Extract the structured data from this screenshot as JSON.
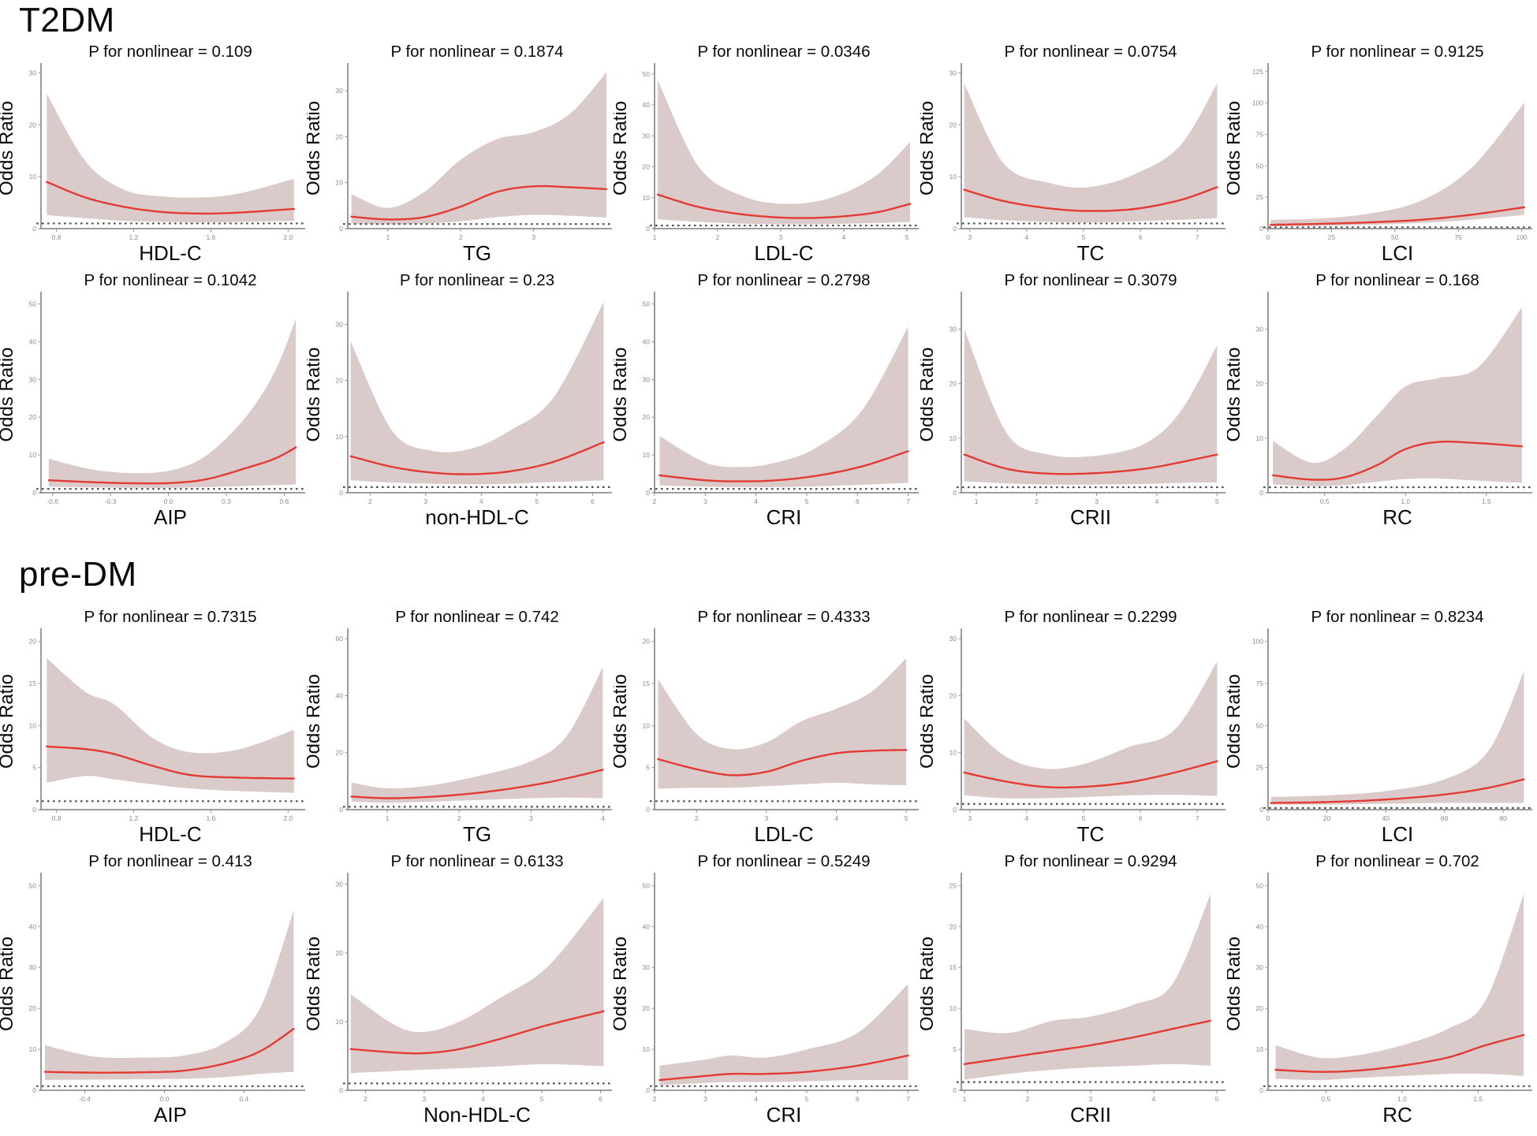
{
  "figure": {
    "sections": [
      {
        "id": "t2dm",
        "label": "T2DM"
      },
      {
        "id": "predm",
        "label": "pre-DM"
      }
    ],
    "ylabel": "Odds Ratio",
    "title_prefix": "P for nonlinear ="
  },
  "styles": {
    "line_color": "#e23b33",
    "band_color": "#dbcaca",
    "ref_line_color": "#4f4f4f",
    "axis_color": "#8f8f8f",
    "tick_label_color": "#8a8a8a",
    "text_color": "#0a0a0a",
    "background": "#ffffff"
  },
  "chart_data": [
    {
      "type": "line",
      "section": "T2DM",
      "row": 0,
      "title": "P for nonlinear =  0.109",
      "xlabel": "HDL-C",
      "ylabel": "Odds Ratio",
      "xticks": [
        "0.8",
        "1.2",
        "1.6",
        "2.0"
      ],
      "yticks": [
        0,
        10,
        20,
        30
      ],
      "xlim": [
        0.72,
        2.06
      ],
      "ylim": [
        0,
        31
      ],
      "ref_line_y": 1,
      "x": [
        0.75,
        0.95,
        1.15,
        1.35,
        1.55,
        1.75,
        2.03
      ],
      "y": [
        9,
        6,
        4.2,
        3.2,
        2.9,
        3.1,
        3.8
      ],
      "upper": [
        26,
        13,
        7.5,
        6.2,
        6.0,
        6.8,
        9.6
      ],
      "lower": [
        2.6,
        2.0,
        1.5,
        1.3,
        1.2,
        1.3,
        1.5
      ]
    },
    {
      "type": "line",
      "section": "T2DM",
      "row": 0,
      "title": "P for nonlinear =  0.1874",
      "xlabel": "TG",
      "ylabel": "Odds Ratio",
      "xticks": [
        "1",
        "2",
        "3"
      ],
      "yticks": [
        0,
        10,
        20,
        30
      ],
      "xlim": [
        0.45,
        4.0
      ],
      "ylim": [
        0,
        35
      ],
      "ref_line_y": 1,
      "x": [
        0.5,
        1.0,
        1.5,
        2.0,
        2.5,
        3.0,
        3.5,
        4.0
      ],
      "y": [
        2.6,
        2.0,
        2.5,
        4.8,
        8.0,
        9.2,
        9.0,
        8.6
      ],
      "upper": [
        7.5,
        4.5,
        8,
        15,
        19.5,
        21,
        25,
        34
      ],
      "lower": [
        1.1,
        0.9,
        1.1,
        1.6,
        2.5,
        3.0,
        2.8,
        2.4
      ]
    },
    {
      "type": "line",
      "section": "T2DM",
      "row": 0,
      "title": "P for nonlinear =  0.0346",
      "xlabel": "LDL-C",
      "ylabel": "Odds Ratio",
      "xticks": [
        "1",
        "2",
        "3",
        "4",
        "5"
      ],
      "yticks": [
        0,
        10,
        20,
        30,
        40,
        50
      ],
      "xlim": [
        1.0,
        5.1
      ],
      "ylim": [
        0,
        52
      ],
      "ref_line_y": 1,
      "x": [
        1.05,
        1.7,
        2.4,
        3.1,
        3.8,
        4.5,
        5.05
      ],
      "y": [
        11,
        7,
        4.6,
        3.5,
        3.7,
        5.2,
        8
      ],
      "upper": [
        48,
        20,
        10.5,
        8,
        10,
        17,
        28
      ],
      "lower": [
        3,
        2.2,
        1.6,
        1.4,
        1.5,
        1.8,
        2.2
      ]
    },
    {
      "type": "line",
      "section": "T2DM",
      "row": 0,
      "title": "P for nonlinear =  0.0754",
      "xlabel": "TC",
      "ylabel": "Odds Ratio",
      "xticks": [
        "3",
        "4",
        "5",
        "6",
        "7"
      ],
      "yticks": [
        0,
        10,
        20,
        30
      ],
      "xlim": [
        2.85,
        7.4
      ],
      "ylim": [
        0,
        31
      ],
      "ref_line_y": 1,
      "x": [
        2.9,
        3.6,
        4.4,
        5.1,
        5.9,
        6.7,
        7.35
      ],
      "y": [
        7.5,
        5.3,
        3.9,
        3.4,
        3.8,
        5.5,
        8
      ],
      "upper": [
        28,
        12.5,
        8.8,
        8,
        10.5,
        16,
        28
      ],
      "lower": [
        2.2,
        1.6,
        1.3,
        1.2,
        1.4,
        1.7,
        2.0
      ]
    },
    {
      "type": "line",
      "section": "T2DM",
      "row": 0,
      "title": "P for nonlinear =  0.9125",
      "xlabel": "LCI",
      "ylabel": "Odds Ratio",
      "xticks": [
        "0",
        "25",
        "50",
        "75",
        "100"
      ],
      "yticks": [
        0,
        25,
        50,
        75,
        100,
        125
      ],
      "xlim": [
        0,
        102
      ],
      "ylim": [
        0,
        128
      ],
      "ref_line_y": 1,
      "x": [
        1,
        20,
        40,
        60,
        80,
        101
      ],
      "y": [
        3,
        3.8,
        5,
        7,
        11,
        17
      ],
      "upper": [
        7,
        8,
        12,
        22,
        48,
        100
      ],
      "lower": [
        1.8,
        2.2,
        3,
        4.5,
        7,
        11
      ]
    },
    {
      "type": "line",
      "section": "T2DM",
      "row": 1,
      "title": "P for nonlinear =  0.1042",
      "xlabel": "AIP",
      "ylabel": "Odds Ratio",
      "xticks": [
        "-0.6",
        "-0.3",
        "0.0",
        "0.3",
        "0.6"
      ],
      "yticks": [
        0,
        10,
        20,
        30,
        40,
        50
      ],
      "xlim": [
        -0.66,
        0.68
      ],
      "ylim": [
        0,
        52
      ],
      "ref_line_y": 1,
      "x": [
        -0.62,
        -0.4,
        -0.18,
        0.02,
        0.2,
        0.4,
        0.55,
        0.66
      ],
      "y": [
        3.3,
        2.8,
        2.5,
        2.6,
        3.6,
        6.5,
        9,
        12
      ],
      "upper": [
        9,
        6.2,
        5.2,
        6,
        10,
        20,
        32,
        46
      ],
      "lower": [
        1.6,
        1.4,
        1.3,
        1.3,
        1.5,
        1.8,
        2.0,
        2.2
      ]
    },
    {
      "type": "line",
      "section": "T2DM",
      "row": 1,
      "title": "P for nonlinear =  0.23",
      "xlabel": "non-HDL-C",
      "ylabel": "Odds Ratio",
      "xticks": [
        "2",
        "3",
        "4",
        "5",
        "6"
      ],
      "yticks": [
        0,
        10,
        20,
        30
      ],
      "xlim": [
        1.6,
        6.25
      ],
      "ylim": [
        0,
        35
      ],
      "ref_line_y": 1,
      "x": [
        1.65,
        2.4,
        3.1,
        3.8,
        4.5,
        5.3,
        6.2
      ],
      "y": [
        6.5,
        4.6,
        3.6,
        3.3,
        3.8,
        5.5,
        9
      ],
      "upper": [
        27,
        11,
        7.5,
        7.8,
        11,
        17,
        34
      ],
      "lower": [
        2.2,
        1.8,
        1.6,
        1.5,
        1.6,
        1.9,
        2.2
      ]
    },
    {
      "type": "line",
      "section": "T2DM",
      "row": 1,
      "title": "P for nonlinear =  0.2798",
      "xlabel": "CRI",
      "ylabel": "Odds Ratio",
      "xticks": [
        "2",
        "3",
        "4",
        "5",
        "6",
        "7"
      ],
      "yticks": [
        0,
        10,
        20,
        30,
        40,
        50
      ],
      "xlim": [
        2.0,
        7.1
      ],
      "ylim": [
        0,
        52
      ],
      "ref_line_y": 1,
      "x": [
        2.1,
        3.0,
        3.7,
        4.4,
        5.2,
        6.1,
        7.0
      ],
      "y": [
        4.6,
        3.3,
        3.0,
        3.3,
        4.5,
        7,
        11
      ],
      "upper": [
        15,
        8,
        6.8,
        8,
        12,
        22,
        44
      ],
      "lower": [
        1.9,
        1.6,
        1.5,
        1.5,
        1.7,
        2.1,
        2.6
      ]
    },
    {
      "type": "line",
      "section": "T2DM",
      "row": 1,
      "title": "P for nonlinear =  0.3079",
      "xlabel": "CRII",
      "ylabel": "Odds Ratio",
      "xticks": [
        "1",
        "2",
        "3",
        "4",
        "5"
      ],
      "yticks": [
        0,
        10,
        20,
        30
      ],
      "xlim": [
        0.75,
        5.05
      ],
      "ylim": [
        0,
        36
      ],
      "ref_line_y": 1,
      "x": [
        0.8,
        1.5,
        2.2,
        3.0,
        3.8,
        4.4,
        5.0
      ],
      "y": [
        7,
        4.4,
        3.5,
        3.6,
        4.4,
        5.6,
        7
      ],
      "upper": [
        30,
        11,
        7,
        6.8,
        9,
        15,
        27
      ],
      "lower": [
        2.1,
        1.7,
        1.5,
        1.5,
        1.6,
        1.8,
        1.9
      ]
    },
    {
      "type": "line",
      "section": "T2DM",
      "row": 1,
      "title": "P for nonlinear =  0.168",
      "xlabel": "RC",
      "ylabel": "Odds Ratio",
      "xticks": [
        "0.5",
        "1.0",
        "1.5"
      ],
      "yticks": [
        0,
        10,
        20,
        30
      ],
      "xlim": [
        0.15,
        1.75
      ],
      "ylim": [
        0,
        36
      ],
      "ref_line_y": 1,
      "x": [
        0.18,
        0.42,
        0.62,
        0.82,
        1.0,
        1.2,
        1.45,
        1.72
      ],
      "y": [
        3.2,
        2.4,
        2.8,
        5,
        8,
        9.3,
        9.1,
        8.5
      ],
      "upper": [
        9.5,
        5.5,
        8,
        14,
        19.5,
        21,
        23,
        34
      ],
      "lower": [
        1.5,
        1.2,
        1.4,
        2.0,
        2.5,
        2.6,
        2.2,
        1.8
      ]
    },
    {
      "type": "line",
      "section": "pre-DM",
      "row": 2,
      "title": "P for nonlinear =  0.7315",
      "xlabel": "HDL-C",
      "ylabel": "Odds Ratio",
      "xticks": [
        "0.8",
        "1.2",
        "1.6",
        "2.0"
      ],
      "yticks": [
        0,
        5,
        10,
        15,
        20
      ],
      "xlim": [
        0.72,
        2.06
      ],
      "ylim": [
        0,
        21
      ],
      "ref_line_y": 1,
      "x": [
        0.75,
        0.95,
        1.1,
        1.3,
        1.5,
        1.75,
        2.03
      ],
      "y": [
        7.5,
        7.2,
        6.6,
        5.2,
        4.1,
        3.8,
        3.7
      ],
      "upper": [
        18,
        14,
        12.5,
        8.5,
        6.8,
        7.2,
        9.5
      ],
      "lower": [
        3.2,
        4.0,
        3.6,
        3.0,
        2.5,
        2.2,
        2.0
      ]
    },
    {
      "type": "line",
      "section": "pre-DM",
      "row": 2,
      "title": "P for nonlinear =  0.742",
      "xlabel": "TG",
      "ylabel": "Odds Ratio",
      "xticks": [
        "1",
        "2",
        "3",
        "4"
      ],
      "yticks": [
        0,
        20,
        40,
        60
      ],
      "xlim": [
        0.45,
        4.05
      ],
      "ylim": [
        0,
        62
      ],
      "ref_line_y": 1,
      "x": [
        0.5,
        1.0,
        1.6,
        2.3,
        3.0,
        3.5,
        4.0
      ],
      "y": [
        4.6,
        4.0,
        4.5,
        6,
        8.5,
        11,
        14
      ],
      "upper": [
        9.5,
        7.5,
        8.5,
        12,
        17,
        26,
        50
      ],
      "lower": [
        2.8,
        2.4,
        2.8,
        3.4,
        4.0,
        4.2,
        4.0
      ]
    },
    {
      "type": "line",
      "section": "pre-DM",
      "row": 2,
      "title": "P for nonlinear =  0.4333",
      "xlabel": "LDL-C",
      "ylabel": "Odds Ratio",
      "xticks": [
        "2",
        "3",
        "4",
        "5"
      ],
      "yticks": [
        0,
        5,
        10,
        15,
        20
      ],
      "xlim": [
        1.4,
        5.1
      ],
      "ylim": [
        0,
        21
      ],
      "ref_line_y": 1,
      "x": [
        1.45,
        2.0,
        2.5,
        3.0,
        3.5,
        4.0,
        4.5,
        5.0
      ],
      "y": [
        6,
        4.8,
        4.1,
        4.5,
        5.8,
        6.7,
        7.0,
        7.1
      ],
      "upper": [
        15.5,
        9,
        7.2,
        8,
        10.5,
        12,
        14,
        18
      ],
      "lower": [
        2.5,
        2.6,
        2.6,
        2.8,
        3.0,
        3.2,
        3.0,
        2.9
      ]
    },
    {
      "type": "line",
      "section": "pre-DM",
      "row": 2,
      "title": "P for nonlinear =  0.2299",
      "xlabel": "TC",
      "ylabel": "Odds Ratio",
      "xticks": [
        "3",
        "4",
        "5",
        "6",
        "7"
      ],
      "yticks": [
        0,
        10,
        20,
        30
      ],
      "xlim": [
        2.85,
        7.4
      ],
      "ylim": [
        0,
        31
      ],
      "ref_line_y": 1,
      "x": [
        2.9,
        3.6,
        4.3,
        5.0,
        5.8,
        6.6,
        7.35
      ],
      "y": [
        6.5,
        5,
        4,
        4,
        4.8,
        6.5,
        8.5
      ],
      "upper": [
        16,
        9.5,
        7.2,
        8,
        11,
        14,
        26
      ],
      "lower": [
        2.5,
        2.0,
        2.0,
        2.2,
        2.5,
        2.6,
        2.4
      ]
    },
    {
      "type": "line",
      "section": "pre-DM",
      "row": 2,
      "title": "P for nonlinear =  0.8234",
      "xlabel": "LCI",
      "ylabel": "Odds Ratio",
      "xticks": [
        "0",
        "20",
        "40",
        "60",
        "80"
      ],
      "yticks": [
        0,
        25,
        50,
        75,
        100
      ],
      "xlim": [
        0,
        88
      ],
      "ylim": [
        0,
        105
      ],
      "ref_line_y": 1,
      "x": [
        1,
        20,
        40,
        60,
        75,
        87
      ],
      "y": [
        4,
        4.5,
        6,
        9,
        13,
        18
      ],
      "upper": [
        7.5,
        8.5,
        11,
        18,
        35,
        82
      ],
      "lower": [
        3,
        3,
        3.5,
        4,
        4,
        4
      ]
    },
    {
      "type": "line",
      "section": "pre-DM",
      "row": 3,
      "title": "P for nonlinear =  0.413",
      "xlabel": "AIP",
      "ylabel": "Odds Ratio",
      "xticks": [
        "-0.4",
        "0.0",
        "0.4"
      ],
      "yticks": [
        0,
        10,
        20,
        30,
        40,
        50
      ],
      "xlim": [
        -0.62,
        0.68
      ],
      "ylim": [
        0,
        52
      ],
      "ref_line_y": 1,
      "x": [
        -0.6,
        -0.35,
        -0.1,
        0.1,
        0.3,
        0.48,
        0.65
      ],
      "y": [
        4.5,
        4.3,
        4.4,
        4.8,
        6.5,
        9.5,
        15
      ],
      "upper": [
        11,
        8.2,
        8,
        8.5,
        11.5,
        20,
        44
      ],
      "lower": [
        2.5,
        2.6,
        2.7,
        2.8,
        3.2,
        4.0,
        4.5
      ]
    },
    {
      "type": "line",
      "section": "pre-DM",
      "row": 3,
      "title": "P for nonlinear =  0.6133",
      "xlabel": "Non-HDL-C",
      "ylabel": "Odds Ratio",
      "xticks": [
        "2",
        "3",
        "4",
        "5",
        "6"
      ],
      "yticks": [
        0,
        10,
        20,
        30
      ],
      "xlim": [
        1.7,
        6.1
      ],
      "ylim": [
        0,
        31
      ],
      "ref_line_y": 1,
      "x": [
        1.75,
        2.5,
        3.0,
        3.6,
        4.3,
        5.1,
        6.05
      ],
      "y": [
        6,
        5.5,
        5.4,
        6,
        7.5,
        9.5,
        11.5
      ],
      "upper": [
        14,
        9.5,
        8.5,
        10,
        13.5,
        18,
        28
      ],
      "lower": [
        2.5,
        2.8,
        3.0,
        3.2,
        3.5,
        3.8,
        3.5
      ]
    },
    {
      "type": "line",
      "section": "pre-DM",
      "row": 3,
      "title": "P for nonlinear =  0.5249",
      "xlabel": "CRI",
      "ylabel": "Odds Ratio",
      "xticks": [
        "2",
        "3",
        "4",
        "5",
        "6",
        "7"
      ],
      "yticks": [
        0,
        10,
        20,
        30,
        40,
        50
      ],
      "xlim": [
        2.0,
        7.1
      ],
      "ylim": [
        0,
        52
      ],
      "ref_line_y": 1,
      "x": [
        2.1,
        3.0,
        3.5,
        4.2,
        5.0,
        6.0,
        7.0
      ],
      "y": [
        2.5,
        3.5,
        4.0,
        4.0,
        4.5,
        6,
        8.5
      ],
      "upper": [
        6,
        7.5,
        8.5,
        8,
        10,
        14,
        26
      ],
      "lower": [
        1.2,
        1.8,
        2.0,
        2.0,
        2.2,
        2.5,
        2.5
      ]
    },
    {
      "type": "line",
      "section": "pre-DM",
      "row": 3,
      "title": "P for nonlinear =  0.9294",
      "xlabel": "CRII",
      "ylabel": "Odds Ratio",
      "xticks": [
        "1",
        "2",
        "3",
        "4",
        "5"
      ],
      "yticks": [
        0,
        5,
        10,
        15,
        20,
        25
      ],
      "xlim": [
        0.95,
        5.05
      ],
      "ylim": [
        0,
        26
      ],
      "ref_line_y": 1,
      "x": [
        1.0,
        1.7,
        2.4,
        3.0,
        3.7,
        4.3,
        4.9
      ],
      "y": [
        3.2,
        4.0,
        4.8,
        5.5,
        6.5,
        7.5,
        8.5
      ],
      "upper": [
        7.5,
        7.0,
        8.5,
        9,
        10.5,
        13,
        24
      ],
      "lower": [
        1.3,
        2.0,
        2.5,
        2.8,
        3.0,
        3.2,
        3.0
      ]
    },
    {
      "type": "line",
      "section": "pre-DM",
      "row": 3,
      "title": "P for nonlinear =  0.702",
      "xlabel": "RC",
      "ylabel": "Odds Ratio",
      "xticks": [
        "0.5",
        "1.0",
        "1.5"
      ],
      "yticks": [
        0,
        10,
        20,
        30,
        40,
        50
      ],
      "xlim": [
        0.12,
        1.82
      ],
      "ylim": [
        0,
        52
      ],
      "ref_line_y": 1,
      "x": [
        0.17,
        0.45,
        0.7,
        1.0,
        1.3,
        1.55,
        1.8
      ],
      "y": [
        5,
        4.5,
        4.8,
        6,
        8,
        11,
        13.5
      ],
      "upper": [
        11,
        8,
        8.5,
        11,
        15,
        22,
        48
      ],
      "lower": [
        2.8,
        2.5,
        3.0,
        3.5,
        4.0,
        4.0,
        3.5
      ]
    }
  ]
}
